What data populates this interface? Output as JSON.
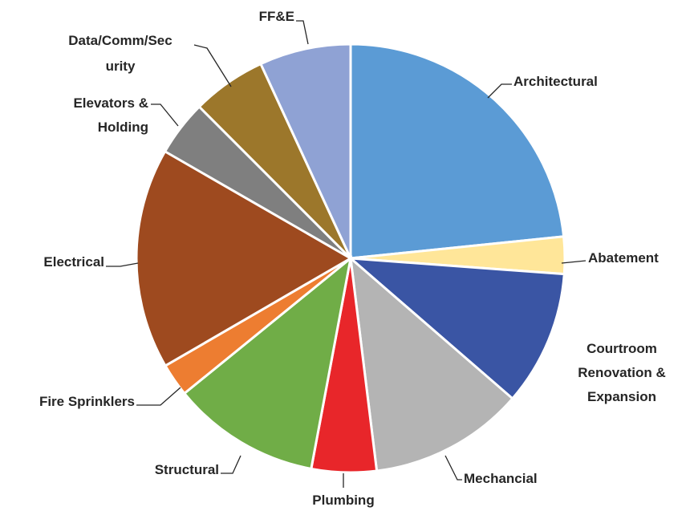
{
  "chart_data": {
    "type": "pie",
    "categories": [
      "Architectural",
      "Abatement",
      "Courtroom Renovation & Expansion",
      "Mechancial",
      "Plumbing",
      "Structural",
      "Fire Sprinklers",
      "Electrical",
      "Elevators & Holding",
      "Data/Comm/Security",
      "FF&E"
    ],
    "values": [
      23.4,
      2.8,
      10.2,
      11.7,
      4.9,
      11.2,
      2.5,
      16.7,
      4.2,
      5.6,
      6.9
    ],
    "colors": [
      "#5b9bd5",
      "#ffe699",
      "#3a55a4",
      "#b4b4b4",
      "#e8262a",
      "#70ad47",
      "#ed7d31",
      "#9e4a1f",
      "#7f7f7f",
      "#9c772b",
      "#8fa2d4"
    ]
  }
}
